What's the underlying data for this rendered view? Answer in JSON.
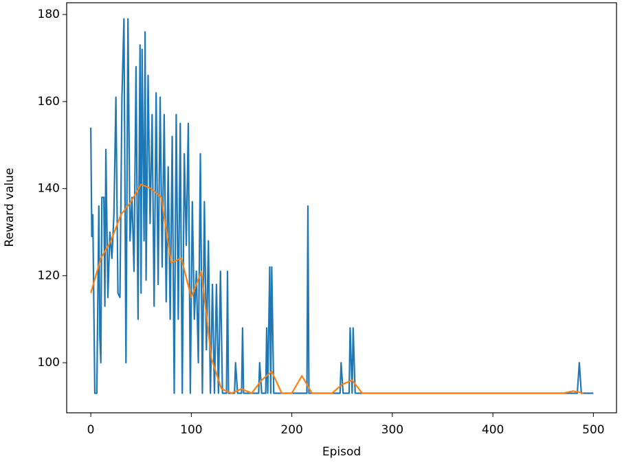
{
  "chart_data": {
    "type": "line",
    "xlabel": "Episod",
    "ylabel": "Reward value",
    "xlim": [
      -24,
      523
    ],
    "ylim": [
      88.5,
      182.7
    ],
    "xticks": [
      0,
      100,
      200,
      300,
      400,
      500
    ],
    "yticks": [
      100,
      120,
      140,
      160,
      180
    ],
    "grid": false,
    "series": [
      {
        "color": "#1f77b4",
        "x": [
          0,
          1,
          2,
          4,
          6,
          8,
          9,
          10,
          11,
          13,
          14,
          15,
          17,
          19,
          21,
          23,
          25,
          27,
          29,
          31,
          33,
          35,
          37,
          39,
          41,
          43,
          45,
          47,
          49,
          50,
          51,
          53,
          54,
          55,
          57,
          59,
          61,
          63,
          65,
          67,
          69,
          71,
          73,
          75,
          77,
          79,
          81,
          83,
          85,
          87,
          89,
          91,
          93,
          95,
          97,
          99,
          101,
          103,
          105,
          107,
          109,
          111,
          113,
          115,
          117,
          119,
          121,
          123,
          125,
          127,
          129,
          131,
          135,
          136,
          137,
          143,
          144,
          146,
          150,
          151,
          152,
          167,
          168,
          170,
          174,
          175,
          176,
          178,
          179,
          180,
          182,
          215,
          216,
          217,
          248,
          249,
          251,
          257,
          258,
          260,
          261,
          263,
          484,
          486,
          488,
          500
        ],
        "values": [
          154,
          129,
          134,
          93,
          93,
          136,
          106,
          100,
          138,
          138,
          113,
          149,
          115,
          130,
          124,
          134,
          161,
          116,
          115,
          161,
          179,
          100,
          179,
          128,
          138,
          121,
          168,
          110,
          173,
          116,
          172,
          128,
          176,
          119,
          166,
          132,
          157,
          113,
          162,
          118,
          161,
          122,
          157,
          114,
          145,
          110,
          152,
          93,
          157,
          110,
          155,
          93,
          148,
          127,
          155,
          93,
          137,
          110,
          121,
          100,
          148,
          93,
          137,
          103,
          128,
          93,
          118,
          93,
          118,
          93,
          121,
          93,
          93,
          121,
          93,
          93,
          100,
          93,
          93,
          108,
          93,
          93,
          100,
          93,
          93,
          108,
          93,
          122,
          93,
          122,
          93,
          93,
          136,
          93,
          93,
          100,
          93,
          93,
          108,
          93,
          108,
          93,
          93,
          100,
          93,
          93
        ]
      },
      {
        "color": "#ff7f0e",
        "x": [
          0,
          10,
          20,
          30,
          40,
          50,
          60,
          70,
          80,
          90,
          100,
          110,
          120,
          130,
          140,
          150,
          160,
          170,
          180,
          190,
          200,
          210,
          220,
          230,
          240,
          250,
          260,
          270,
          470,
          480,
          490
        ],
        "values": [
          116,
          124,
          128,
          134,
          137,
          141,
          140,
          138,
          123,
          124,
          115,
          121,
          101,
          94,
          93,
          94,
          93,
          96,
          98,
          93,
          93,
          97,
          93,
          93,
          93,
          95,
          96,
          93,
          93,
          93.5,
          93
        ]
      }
    ]
  }
}
